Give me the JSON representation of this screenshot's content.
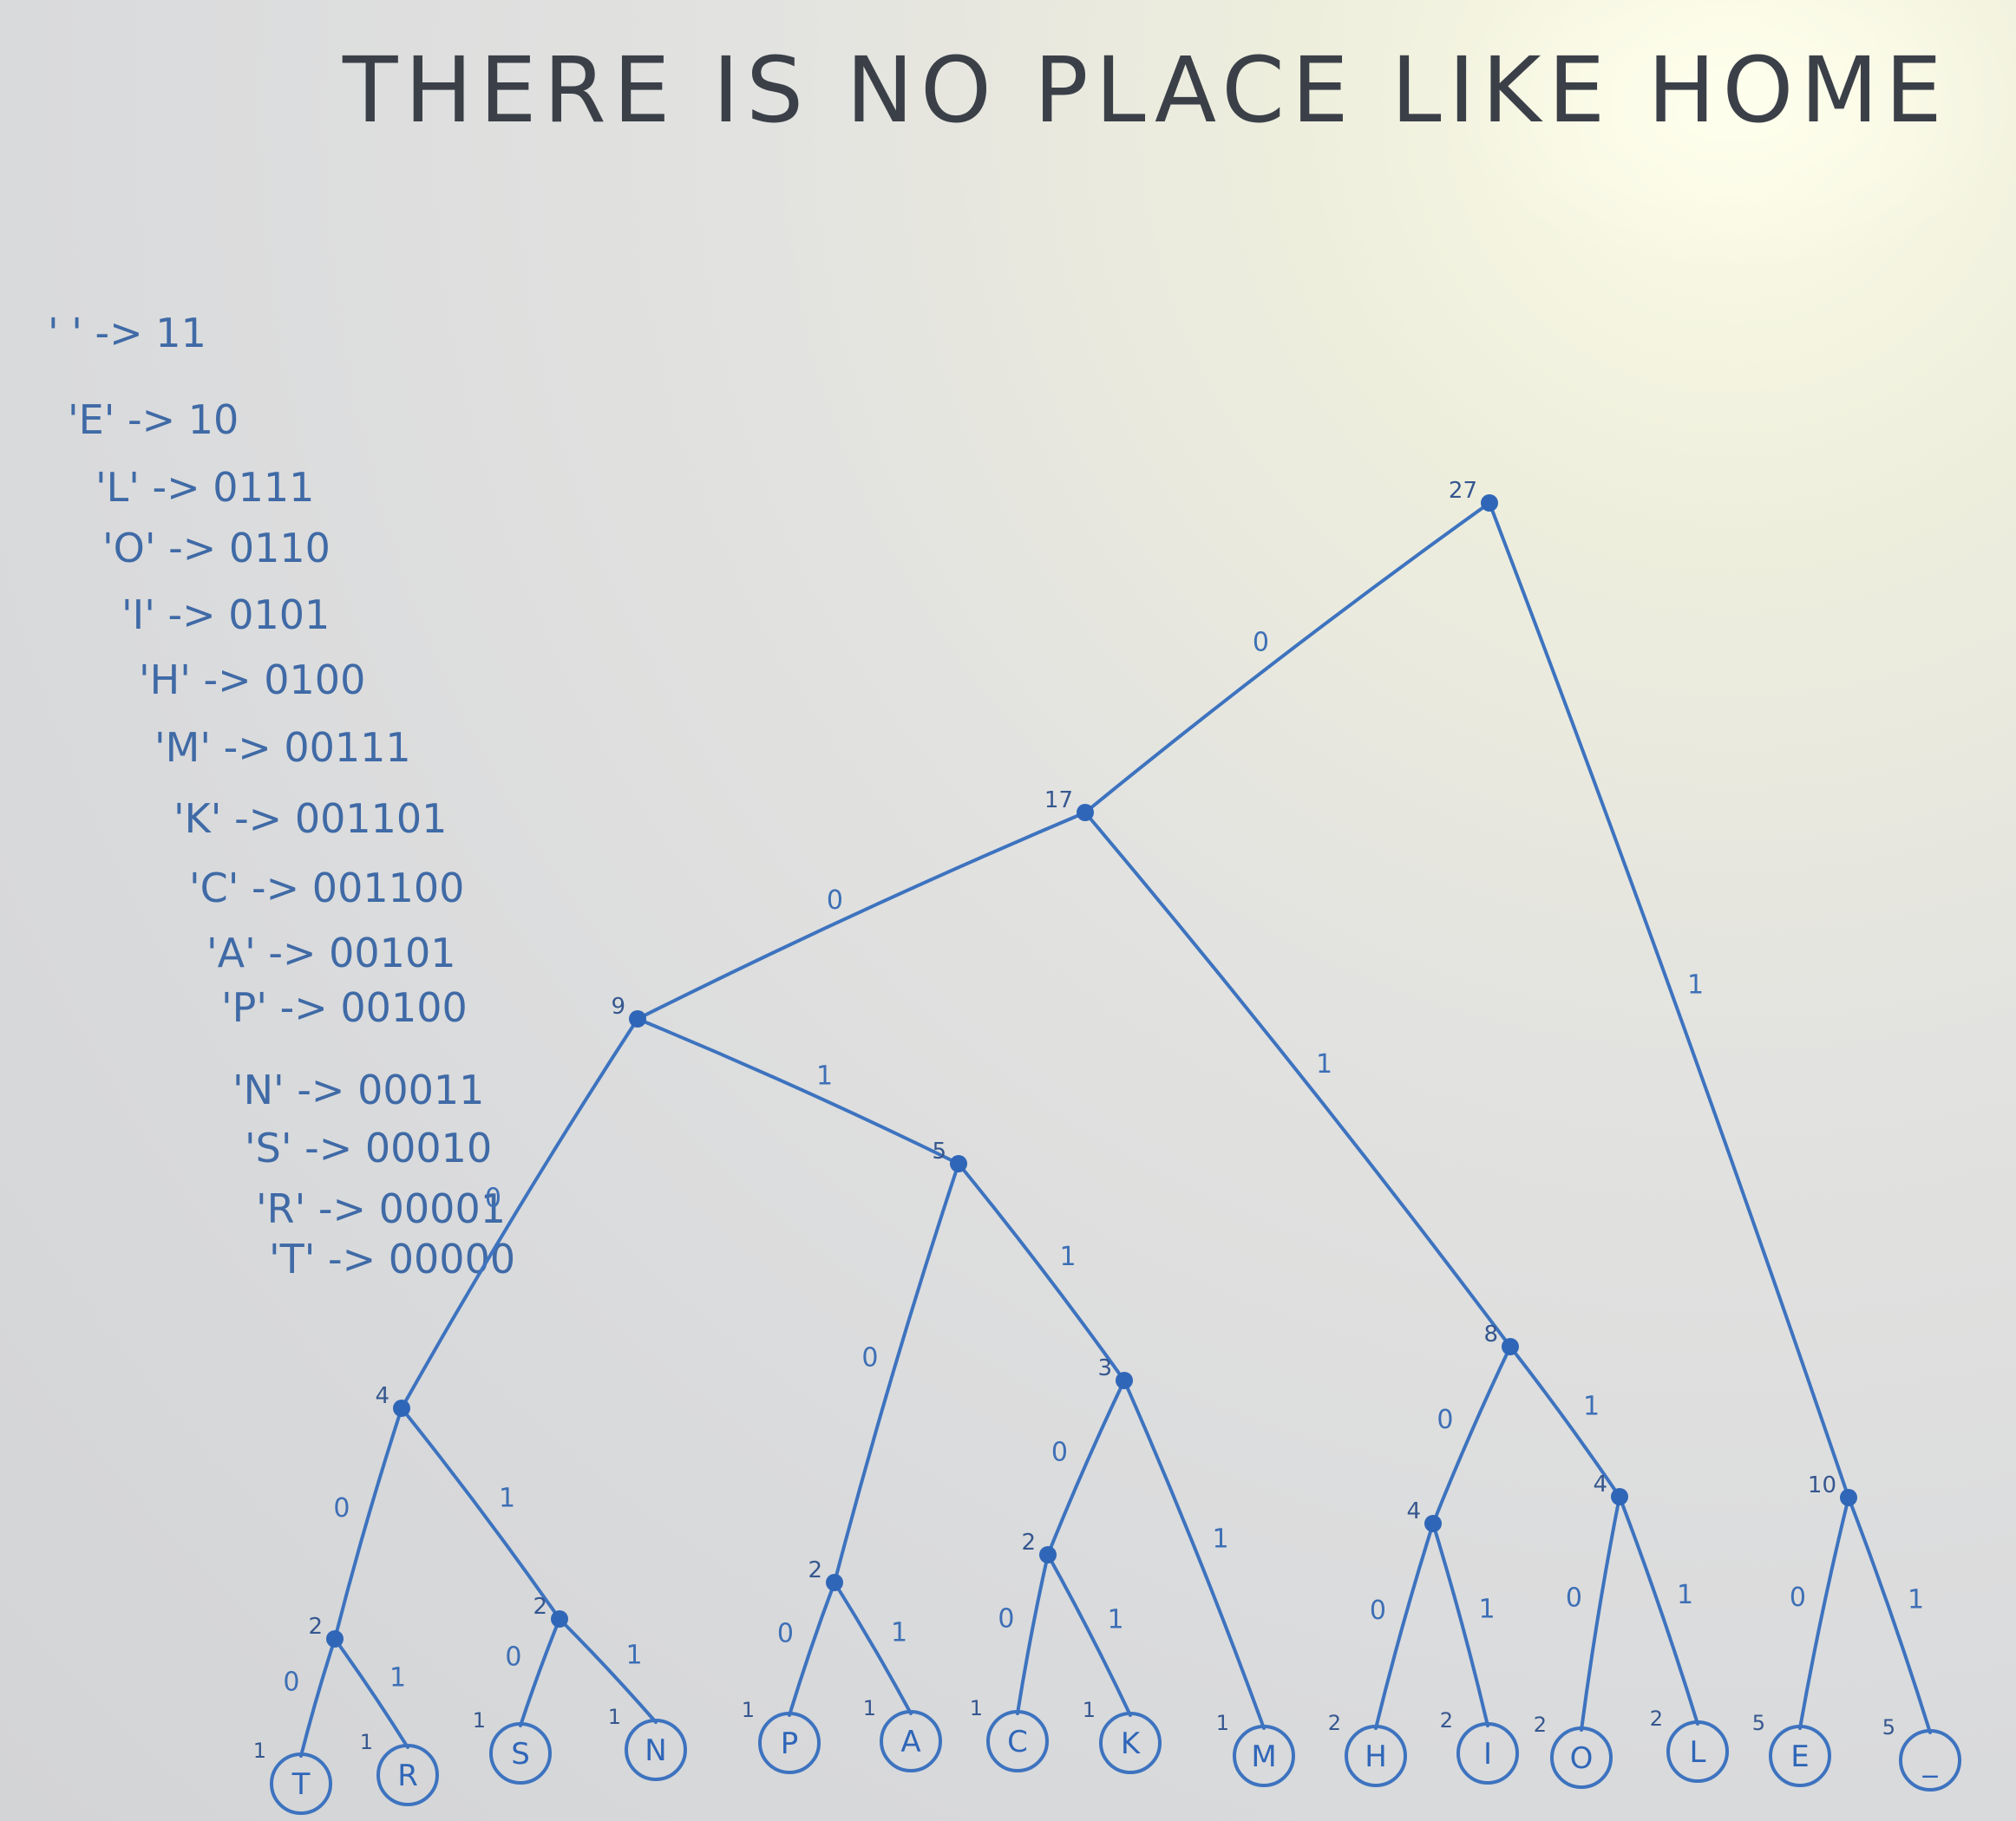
{
  "title": "THERE IS NO PLACE LIKE HOME",
  "codes": [
    "' ' -> 11",
    "'E' -> 10",
    "'L' -> 0111",
    "'O' -> 0110",
    "'I' -> 0101",
    "'H' -> 0100",
    "'M' -> 00111",
    "'K' -> 001101",
    "'C' -> 001100",
    "'A' -> 00101",
    "'P' -> 00100",
    "'N' -> 00011",
    "'S' -> 00010",
    "'R' -> 00001",
    "'T' -> 00000"
  ],
  "tree": {
    "nodes": [
      {
        "id": "n27",
        "weight": "27"
      },
      {
        "id": "n17",
        "weight": "17"
      },
      {
        "id": "n9",
        "weight": "9"
      },
      {
        "id": "n5",
        "weight": "5"
      },
      {
        "id": "n3",
        "weight": "3"
      },
      {
        "id": "n4a",
        "weight": "4"
      },
      {
        "id": "n2tr",
        "weight": "2"
      },
      {
        "id": "n2sn",
        "weight": "2"
      },
      {
        "id": "n2pa",
        "weight": "2"
      },
      {
        "id": "n2ck",
        "weight": "2"
      },
      {
        "id": "n8",
        "weight": "8"
      },
      {
        "id": "n4hi",
        "weight": "4"
      },
      {
        "id": "n4ol",
        "weight": "4"
      },
      {
        "id": "n10",
        "weight": "10"
      }
    ],
    "leaves": [
      {
        "id": "T",
        "letter": "T",
        "count": "1"
      },
      {
        "id": "R",
        "letter": "R",
        "count": "1"
      },
      {
        "id": "S",
        "letter": "S",
        "count": "1"
      },
      {
        "id": "N",
        "letter": "N",
        "count": "1"
      },
      {
        "id": "P",
        "letter": "P",
        "count": "1"
      },
      {
        "id": "A",
        "letter": "A",
        "count": "1"
      },
      {
        "id": "C",
        "letter": "C",
        "count": "1"
      },
      {
        "id": "K",
        "letter": "K",
        "count": "1"
      },
      {
        "id": "M",
        "letter": "M",
        "count": "1"
      },
      {
        "id": "H",
        "letter": "H",
        "count": "2"
      },
      {
        "id": "I",
        "letter": "I",
        "count": "2"
      },
      {
        "id": "O",
        "letter": "O",
        "count": "2"
      },
      {
        "id": "L",
        "letter": "L",
        "count": "2"
      },
      {
        "id": "E",
        "letter": "E",
        "count": "5"
      },
      {
        "id": "SP",
        "letter": "_",
        "count": "5"
      }
    ],
    "edges": [
      {
        "from": "n27",
        "to": "n17",
        "bit": "0"
      },
      {
        "from": "n27",
        "to": "n10",
        "bit": "1"
      },
      {
        "from": "n17",
        "to": "n9",
        "bit": "0"
      },
      {
        "from": "n17",
        "to": "n8",
        "bit": "1"
      },
      {
        "from": "n9",
        "to": "n4a",
        "bit": "0"
      },
      {
        "from": "n9",
        "to": "n5",
        "bit": "1"
      },
      {
        "from": "n5",
        "to": "n2pa",
        "bit": "0"
      },
      {
        "from": "n5",
        "to": "n3",
        "bit": "1"
      },
      {
        "from": "n3",
        "to": "n2ck",
        "bit": "0"
      },
      {
        "from": "n3",
        "to": "M",
        "bit": "1"
      },
      {
        "from": "n4a",
        "to": "n2tr",
        "bit": "0"
      },
      {
        "from": "n4a",
        "to": "n2sn",
        "bit": "1"
      },
      {
        "from": "n2tr",
        "to": "T",
        "bit": "0"
      },
      {
        "from": "n2tr",
        "to": "R",
        "bit": "1"
      },
      {
        "from": "n2sn",
        "to": "S",
        "bit": "0"
      },
      {
        "from": "n2sn",
        "to": "N",
        "bit": "1"
      },
      {
        "from": "n2pa",
        "to": "P",
        "bit": "0"
      },
      {
        "from": "n2pa",
        "to": "A",
        "bit": "1"
      },
      {
        "from": "n2ck",
        "to": "C",
        "bit": "0"
      },
      {
        "from": "n2ck",
        "to": "K",
        "bit": "1"
      },
      {
        "from": "n8",
        "to": "n4hi",
        "bit": "0"
      },
      {
        "from": "n8",
        "to": "n4ol",
        "bit": "1"
      },
      {
        "from": "n4hi",
        "to": "H",
        "bit": "0"
      },
      {
        "from": "n4hi",
        "to": "I",
        "bit": "1"
      },
      {
        "from": "n4ol",
        "to": "O",
        "bit": "0"
      },
      {
        "from": "n4ol",
        "to": "L",
        "bit": "1"
      },
      {
        "from": "n10",
        "to": "E",
        "bit": "0"
      },
      {
        "from": "n10",
        "to": "SP",
        "bit": "1"
      }
    ]
  },
  "colors": {
    "marker_blue": "#3d73bf",
    "title_ink": "#3b4048"
  }
}
